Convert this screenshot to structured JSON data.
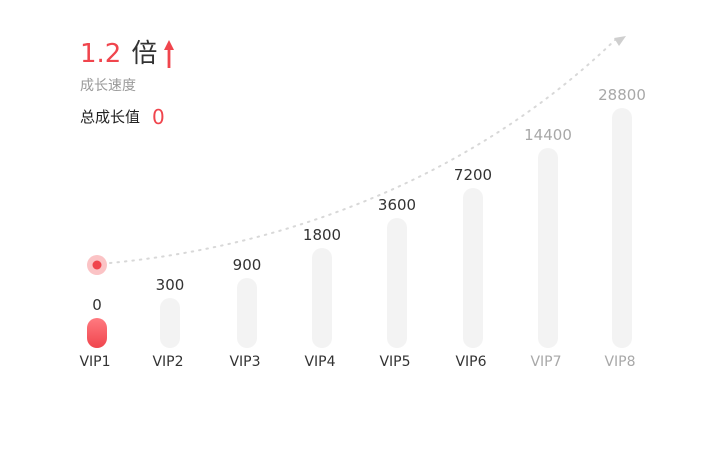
{
  "speed": {
    "multiplier": "1.2",
    "unit": "倍",
    "label": "成长速度"
  },
  "total": {
    "label": "总成长值",
    "value": "0"
  },
  "colors": {
    "accent": "#f0454d",
    "bar_bg": "#f3f3f3",
    "label_active": "#333333",
    "label_dim": "#a8a8a8",
    "curve": "#d8d8d8"
  },
  "chart_data": {
    "type": "bar",
    "categories": [
      "VIP1",
      "VIP2",
      "VIP3",
      "VIP4",
      "VIP5",
      "VIP6",
      "VIP7",
      "VIP8"
    ],
    "values": [
      0,
      300,
      900,
      1800,
      3600,
      7200,
      14400,
      28800
    ],
    "value_labels": [
      "0",
      "300",
      "900",
      "1800",
      "3600",
      "7200",
      "14400",
      "28800"
    ],
    "current_level": "VIP1",
    "current_value": 0,
    "dimmed_levels": [
      "VIP7",
      "VIP8"
    ],
    "trend_curve": "dotted, rising to top-right with arrow"
  }
}
